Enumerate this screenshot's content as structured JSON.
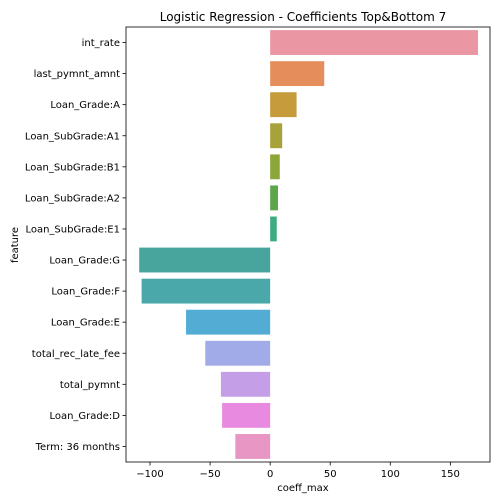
{
  "chart_data": {
    "type": "bar",
    "orientation": "horizontal",
    "title": "Logistic Regression - Coefficients Top&Bottom 7",
    "xlabel": "coeff_max",
    "ylabel": "feature",
    "xlim": [
      -120,
      183
    ],
    "xticks": [
      -100,
      -50,
      0,
      50,
      100,
      150
    ],
    "grid": false,
    "categories": [
      "int_rate",
      "last_pymnt_amnt",
      "Loan_Grade:A",
      "Loan_SubGrade:A1",
      "Loan_SubGrade:B1",
      "Loan_SubGrade:A2",
      "Loan_SubGrade:E1",
      "Loan_Grade:G",
      "Loan_Grade:F",
      "Loan_Grade:E",
      "total_rec_late_fee",
      "total_pymnt",
      "Loan_Grade:D",
      "Term: 36 months"
    ],
    "values": [
      173,
      45,
      22,
      10,
      8,
      6.5,
      5.5,
      -109,
      -107,
      -70,
      -54,
      -41,
      -40,
      -29
    ],
    "colors": [
      "#ea96a3",
      "#e68e5b",
      "#c59b3c",
      "#a8a23b",
      "#8ca63a",
      "#5ba64a",
      "#3fab83",
      "#48a59e",
      "#4ba8aa",
      "#52acd3",
      "#a0abe8",
      "#c49fe8",
      "#e88be0",
      "#e896c3"
    ]
  }
}
